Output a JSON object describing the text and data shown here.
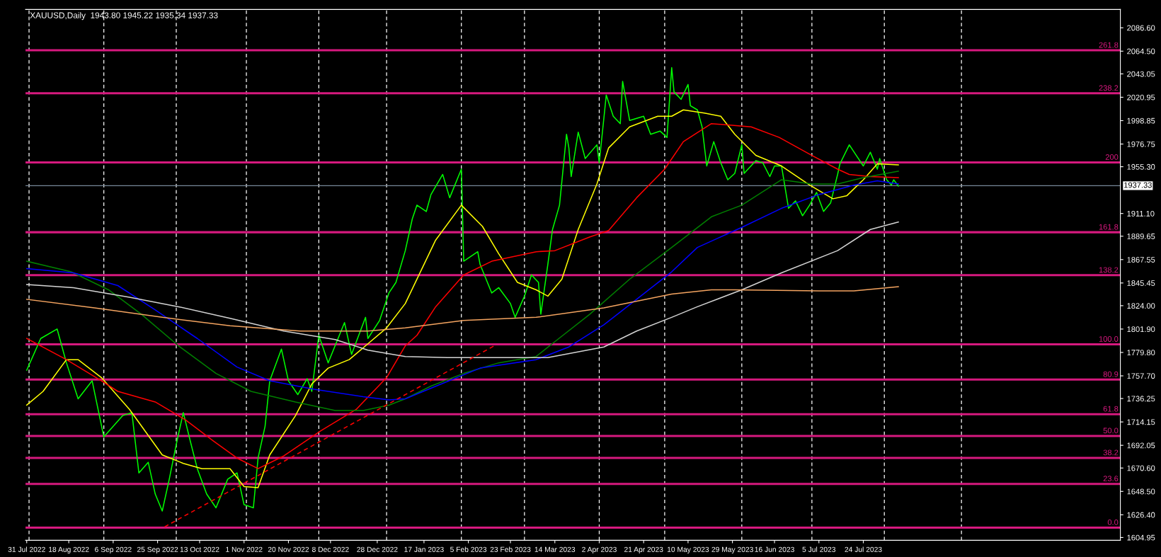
{
  "chart_data": {
    "type": "line",
    "title": "XAUUSD,Daily  1943.80 1945.22 1935.34 1937.33",
    "xlim": [
      "2022-07-30T12:00",
      "2023-11-11"
    ],
    "ylim": [
      1602.3,
      2103.9
    ],
    "xticks": [
      {
        "value": "2022-07-31",
        "label": "31 Jul 2022"
      },
      {
        "value": "2022-08-18",
        "label": "18 Aug 2022"
      },
      {
        "value": "2022-09-06",
        "label": "6 Sep 2022"
      },
      {
        "value": "2022-09-25",
        "label": "25 Sep 2022"
      },
      {
        "value": "2022-10-13",
        "label": "13 Oct 2022"
      },
      {
        "value": "2022-11-01",
        "label": "1 Nov 2022"
      },
      {
        "value": "2022-11-20",
        "label": "20 Nov 2022"
      },
      {
        "value": "2022-12-08",
        "label": "8 Dec 2022"
      },
      {
        "value": "2022-12-28",
        "label": "28 Dec 2022"
      },
      {
        "value": "2023-01-17",
        "label": "17 Jan 2023"
      },
      {
        "value": "2023-02-05",
        "label": "5 Feb 2023"
      },
      {
        "value": "2023-02-23",
        "label": "23 Feb 2023"
      },
      {
        "value": "2023-03-14",
        "label": "14 Mar 2023"
      },
      {
        "value": "2023-04-02",
        "label": "2 Apr 2023"
      },
      {
        "value": "2023-04-21",
        "label": "21 Apr 2023"
      },
      {
        "value": "2023-05-10",
        "label": "10 May 2023"
      },
      {
        "value": "2023-05-29",
        "label": "29 May 2023"
      },
      {
        "value": "2023-06-16",
        "label": "16 Jun 2023"
      },
      {
        "value": "2023-07-05",
        "label": "5 Jul 2023"
      },
      {
        "value": "2023-07-24",
        "label": "24 Jul 2023"
      }
    ],
    "yticks": [
      {
        "value": 1604.95,
        "label": "1604.95"
      },
      {
        "value": 1626.4,
        "label": "1626.40"
      },
      {
        "value": 1648.5,
        "label": "1648.50"
      },
      {
        "value": 1670.6,
        "label": "1670.60"
      },
      {
        "value": 1692.05,
        "label": "1692.05"
      },
      {
        "value": 1714.15,
        "label": "1714.15"
      },
      {
        "value": 1736.25,
        "label": "1736.25"
      },
      {
        "value": 1757.7,
        "label": "1757.70"
      },
      {
        "value": 1779.8,
        "label": "1779.80"
      },
      {
        "value": 1801.9,
        "label": "1801.90"
      },
      {
        "value": 1824.0,
        "label": "1824.00"
      },
      {
        "value": 1845.45,
        "label": "1845.45"
      },
      {
        "value": 1867.55,
        "label": "1867.55"
      },
      {
        "value": 1889.65,
        "label": "1889.65"
      },
      {
        "value": 1911.1,
        "label": "1911.10"
      },
      {
        "value": 1955.3,
        "label": "1955.30"
      },
      {
        "value": 1976.75,
        "label": "1976.75"
      },
      {
        "value": 1998.85,
        "label": "1998.85"
      },
      {
        "value": 2020.95,
        "label": "2020.95"
      },
      {
        "value": 2043.05,
        "label": "2043.05"
      },
      {
        "value": 2064.5,
        "label": "2064.50"
      },
      {
        "value": 2086.6,
        "label": "2086.60"
      }
    ],
    "series": [
      {
        "color": "#00ff00",
        "x": [
          "2022-07-31",
          "2022-08-06",
          "2022-08-13",
          "2022-08-17",
          "2022-08-22",
          "2022-08-28",
          "2022-09-02",
          "2022-09-10",
          "2022-09-14",
          "2022-09-17",
          "2022-09-21",
          "2022-09-24",
          "2022-09-27",
          "2022-09-30",
          "2022-10-03",
          "2022-10-06",
          "2022-10-09",
          "2022-10-12",
          "2022-10-16",
          "2022-10-20",
          "2022-10-25",
          "2022-10-29",
          "2022-11-01",
          "2022-11-05",
          "2022-11-07",
          "2022-11-10",
          "2022-11-12",
          "2022-11-17",
          "2022-11-20",
          "2022-11-24",
          "2022-11-28",
          "2022-11-30",
          "2022-12-03",
          "2022-12-07",
          "2022-12-14",
          "2022-12-17",
          "2022-12-23",
          "2022-12-24",
          "2022-12-29",
          "2023-01-02",
          "2023-01-05",
          "2023-01-09",
          "2023-01-12",
          "2023-01-14",
          "2023-01-18",
          "2023-01-20",
          "2023-01-25",
          "2023-01-28",
          "2023-02-02",
          "2023-02-03",
          "2023-02-09",
          "2023-02-10",
          "2023-02-15",
          "2023-02-18",
          "2023-02-23",
          "2023-02-25",
          "2023-03-01",
          "2023-03-04",
          "2023-03-07",
          "2023-03-08",
          "2023-03-11",
          "2023-03-13",
          "2023-03-16",
          "2023-03-19",
          "2023-03-20",
          "2023-03-21",
          "2023-03-24",
          "2023-03-27",
          "2023-04-01",
          "2023-04-02",
          "2023-04-05",
          "2023-04-08",
          "2023-04-11",
          "2023-04-12",
          "2023-04-15",
          "2023-04-21",
          "2023-04-24",
          "2023-04-28",
          "2023-05-01",
          "2023-05-03",
          "2023-05-04",
          "2023-05-07",
          "2023-05-10",
          "2023-05-11",
          "2023-05-14",
          "2023-05-16",
          "2023-05-18",
          "2023-05-21",
          "2023-05-24",
          "2023-05-27",
          "2023-05-30",
          "2023-06-02",
          "2023-06-03",
          "2023-06-08",
          "2023-06-11",
          "2023-06-14",
          "2023-06-16",
          "2023-06-19",
          "2023-06-22",
          "2023-06-25",
          "2023-06-28",
          "2023-07-01",
          "2023-07-04",
          "2023-07-07",
          "2023-07-10",
          "2023-07-13",
          "2023-07-14",
          "2023-07-18",
          "2023-07-21",
          "2023-07-24",
          "2023-07-27",
          "2023-07-30",
          "2023-07-31",
          "2023-08-03",
          "2023-08-05",
          "2023-08-06",
          "2023-08-08"
        ],
        "values": [
          1763,
          1793,
          1802,
          1770,
          1736,
          1753,
          1700,
          1720,
          1723,
          1666,
          1676,
          1646,
          1630,
          1660,
          1693,
          1723,
          1696,
          1670,
          1646,
          1633,
          1660,
          1666,
          1636,
          1633,
          1680,
          1710,
          1753,
          1783,
          1753,
          1740,
          1755,
          1743,
          1796,
          1770,
          1808,
          1778,
          1813,
          1793,
          1810,
          1836,
          1846,
          1876,
          1906,
          1919,
          1913,
          1929,
          1948,
          1926,
          1953,
          1866,
          1875,
          1863,
          1836,
          1841,
          1826,
          1813,
          1833,
          1853,
          1846,
          1816,
          1863,
          1896,
          1919,
          1986,
          1973,
          1946,
          1988,
          1963,
          1976,
          1959,
          2023,
          2003,
          1996,
          2036,
          1999,
          2003,
          1986,
          1989,
          1983,
          2049,
          2026,
          2019,
          2033,
          2013,
          2009,
          1993,
          1956,
          1979,
          1959,
          1943,
          1949,
          1976,
          1949,
          1961,
          1959,
          1946,
          1956,
          1956,
          1916,
          1923,
          1909,
          1919,
          1931,
          1913,
          1921,
          1948,
          1958,
          1976,
          1966,
          1956,
          1969,
          1953,
          1963,
          1943,
          1938,
          1943,
          1937
        ]
      },
      {
        "color": "#ffff00",
        "x": [
          "2022-07-31",
          "2022-08-07",
          "2022-08-17",
          "2022-08-22",
          "2022-09-01",
          "2022-09-13",
          "2022-09-27",
          "2022-10-06",
          "2022-10-14",
          "2022-10-26",
          "2022-11-01",
          "2022-11-07",
          "2022-11-12",
          "2022-11-23",
          "2022-11-30",
          "2022-12-07",
          "2022-12-16",
          "2022-12-24",
          "2023-01-01",
          "2023-01-09",
          "2023-01-22",
          "2023-02-02",
          "2023-02-11",
          "2023-02-18",
          "2023-02-26",
          "2023-03-06",
          "2023-03-11",
          "2023-03-17",
          "2023-03-24",
          "2023-04-01",
          "2023-04-06",
          "2023-04-15",
          "2023-04-27",
          "2023-05-03",
          "2023-05-08",
          "2023-05-17",
          "2023-05-24",
          "2023-05-30",
          "2023-06-08",
          "2023-06-19",
          "2023-07-01",
          "2023-07-11",
          "2023-07-17",
          "2023-07-24",
          "2023-07-30",
          "2023-08-08"
        ],
        "values": [
          1730,
          1743,
          1773,
          1773,
          1756,
          1726,
          1683,
          1675,
          1670,
          1670,
          1653,
          1652,
          1683,
          1720,
          1750,
          1765,
          1773,
          1788,
          1803,
          1826,
          1886,
          1919,
          1899,
          1873,
          1846,
          1839,
          1833,
          1849,
          1896,
          1939,
          1973,
          1993,
          2003,
          2003,
          2009,
          2006,
          2003,
          1986,
          1966,
          1956,
          1938,
          1925,
          1928,
          1943,
          1958,
          1957
        ]
      },
      {
        "color": "#ff0000",
        "x": [
          "2022-07-31",
          "2022-08-17",
          "2022-09-01",
          "2022-09-08",
          "2022-09-24",
          "2022-10-07",
          "2022-10-19",
          "2022-10-29",
          "2022-11-07",
          "2022-11-18",
          "2022-12-04",
          "2022-12-19",
          "2023-01-01",
          "2023-01-09",
          "2023-01-14",
          "2023-01-22",
          "2023-02-03",
          "2023-02-15",
          "2023-03-06",
          "2023-03-14",
          "2023-03-29",
          "2023-04-06",
          "2023-04-18",
          "2023-04-30",
          "2023-05-08",
          "2023-05-20",
          "2023-06-06",
          "2023-06-18",
          "2023-07-02",
          "2023-07-13",
          "2023-07-18",
          "2023-07-27",
          "2023-08-08"
        ],
        "values": [
          1793,
          1773,
          1753,
          1743,
          1733,
          1716,
          1696,
          1680,
          1670,
          1682,
          1706,
          1726,
          1756,
          1786,
          1796,
          1823,
          1853,
          1866,
          1875,
          1876,
          1889,
          1895,
          1926,
          1953,
          1979,
          1996,
          1993,
          1983,
          1966,
          1953,
          1948,
          1946,
          1945
        ]
      },
      {
        "color": "#008000",
        "x": [
          "2022-07-31",
          "2022-08-19",
          "2022-09-04",
          "2022-09-18",
          "2022-10-04",
          "2022-10-20",
          "2022-11-04",
          "2022-11-23",
          "2022-12-10",
          "2022-12-22",
          "2023-01-02",
          "2023-01-09",
          "2023-01-20",
          "2023-02-03",
          "2023-02-18",
          "2023-03-06",
          "2023-03-14",
          "2023-03-29",
          "2023-04-15",
          "2023-05-03",
          "2023-05-20",
          "2023-06-02",
          "2023-06-19",
          "2023-07-02",
          "2023-07-13",
          "2023-07-24",
          "2023-08-08"
        ],
        "values": [
          1866,
          1856,
          1839,
          1816,
          1786,
          1760,
          1743,
          1733,
          1725,
          1725,
          1730,
          1736,
          1748,
          1760,
          1770,
          1776,
          1790,
          1816,
          1849,
          1879,
          1908,
          1919,
          1943,
          1939,
          1939,
          1945,
          1951
        ]
      },
      {
        "color": "#0000ff",
        "x": [
          "2022-07-31",
          "2022-08-20",
          "2022-09-08",
          "2022-09-24",
          "2022-10-12",
          "2022-10-29",
          "2022-11-12",
          "2022-12-01",
          "2022-12-22",
          "2023-01-02",
          "2023-01-09",
          "2023-01-20",
          "2023-02-10",
          "2023-03-06",
          "2023-03-20",
          "2023-04-04",
          "2023-04-18",
          "2023-05-03",
          "2023-05-14",
          "2023-06-02",
          "2023-06-19",
          "2023-07-05",
          "2023-07-20",
          "2023-07-30",
          "2023-08-08"
        ],
        "values": [
          1859,
          1855,
          1843,
          1820,
          1793,
          1766,
          1753,
          1745,
          1738,
          1735,
          1736,
          1746,
          1765,
          1773,
          1785,
          1806,
          1830,
          1856,
          1879,
          1898,
          1916,
          1929,
          1938,
          1942,
          1939
        ]
      },
      {
        "color": "#d3d3d3",
        "x": [
          "2022-07-31",
          "2022-08-20",
          "2022-09-13",
          "2022-10-04",
          "2022-10-26",
          "2022-11-18",
          "2022-12-10",
          "2022-12-24",
          "2023-01-09",
          "2023-01-27",
          "2023-02-18",
          "2023-03-11",
          "2023-03-23",
          "2023-04-04",
          "2023-04-18",
          "2023-05-03",
          "2023-05-14",
          "2023-06-02",
          "2023-06-19",
          "2023-07-13",
          "2023-07-27",
          "2023-08-08"
        ],
        "values": [
          1844,
          1841,
          1832,
          1823,
          1812,
          1800,
          1792,
          1782,
          1776,
          1775,
          1775,
          1775,
          1780,
          1785,
          1800,
          1813,
          1823,
          1839,
          1855,
          1876,
          1896,
          1903
        ]
      },
      {
        "color": "#f4a460",
        "x": [
          "2022-07-31",
          "2022-08-29",
          "2022-09-27",
          "2022-10-26",
          "2022-11-25",
          "2022-12-24",
          "2023-01-09",
          "2023-02-03",
          "2023-03-06",
          "2023-04-04",
          "2023-05-03",
          "2023-05-20",
          "2023-05-30",
          "2023-07-05",
          "2023-07-20",
          "2023-08-08"
        ],
        "values": [
          1830,
          1822,
          1813,
          1805,
          1800,
          1800,
          1803,
          1810,
          1813,
          1822,
          1835,
          1839,
          1839,
          1838,
          1838,
          1842
        ]
      },
      {
        "color": "#ff0000",
        "line_style": "dashed",
        "x": [
          "2022-09-28",
          "2023-02-16"
        ],
        "values": [
          1615,
          1786
        ]
      }
    ],
    "ref_lines": [
      {
        "axis": "y",
        "value": 2065.3,
        "color": "#d6197e"
      },
      {
        "axis": "y",
        "value": 2024.7,
        "color": "#d6197e"
      },
      {
        "axis": "y",
        "value": 1959.4,
        "color": "#d6197e"
      },
      {
        "axis": "y",
        "value": 1893.4,
        "color": "#d6197e"
      },
      {
        "axis": "y",
        "value": 1852.8,
        "color": "#d6197e"
      },
      {
        "axis": "y",
        "value": 1787.5,
        "color": "#d6197e"
      },
      {
        "axis": "y",
        "value": 1754.2,
        "color": "#d6197e"
      },
      {
        "axis": "y",
        "value": 1721.5,
        "color": "#d6197e"
      },
      {
        "axis": "y",
        "value": 1700.9,
        "color": "#d6197e"
      },
      {
        "axis": "y",
        "value": 1680.2,
        "color": "#d6197e"
      },
      {
        "axis": "y",
        "value": 1655.6,
        "color": "#d6197e"
      },
      {
        "axis": "y",
        "value": 1614.3,
        "color": "#d6197e"
      },
      {
        "axis": "y",
        "value": 1937.33,
        "label": "1937.33",
        "color": "#778899"
      },
      {
        "axis": "x",
        "value": "2022-08-01",
        "color": "#ffffff",
        "line_style": "dashed"
      },
      {
        "axis": "x",
        "value": "2022-09-02",
        "color": "#ffffff",
        "line_style": "dashed"
      },
      {
        "axis": "x",
        "value": "2022-10-03",
        "color": "#ffffff",
        "line_style": "dashed"
      },
      {
        "axis": "x",
        "value": "2022-11-02",
        "color": "#ffffff",
        "line_style": "dashed"
      },
      {
        "axis": "x",
        "value": "2022-12-03",
        "color": "#ffffff",
        "line_style": "dashed"
      },
      {
        "axis": "x",
        "value": "2023-01-01",
        "color": "#ffffff",
        "line_style": "dashed"
      },
      {
        "axis": "x",
        "value": "2023-02-02",
        "color": "#ffffff",
        "line_style": "dashed"
      },
      {
        "axis": "x",
        "value": "2023-03-01",
        "color": "#ffffff",
        "line_style": "dashed"
      },
      {
        "axis": "x",
        "value": "2023-04-02",
        "color": "#ffffff",
        "line_style": "dashed"
      },
      {
        "axis": "x",
        "value": "2023-04-30",
        "color": "#ffffff",
        "line_style": "dashed"
      },
      {
        "axis": "x",
        "value": "2023-06-02",
        "color": "#ffffff",
        "line_style": "dashed"
      },
      {
        "axis": "x",
        "value": "2023-07-02",
        "color": "#ffffff",
        "line_style": "dashed"
      },
      {
        "axis": "x",
        "value": "2023-08-02",
        "color": "#ffffff",
        "line_style": "dashed"
      },
      {
        "axis": "x",
        "value": "2023-09-04",
        "color": "#ffffff",
        "line_style": "dashed"
      }
    ],
    "annotations": [
      {
        "text": "261.8",
        "x": "2023-11-11",
        "y": 2065.3
      },
      {
        "text": "238.2",
        "x": "2023-11-11",
        "y": 2024.7
      },
      {
        "text": "200",
        "x": "2023-11-11",
        "y": 1959.4
      },
      {
        "text": "161.8",
        "x": "2023-11-11",
        "y": 1893.4
      },
      {
        "text": "138.2",
        "x": "2023-11-11",
        "y": 1852.8
      },
      {
        "text": "100.0",
        "x": "2023-11-11",
        "y": 1787.5
      },
      {
        "text": "80.9",
        "x": "2023-11-11",
        "y": 1754.2
      },
      {
        "text": "61.8",
        "x": "2023-11-11",
        "y": 1721.5
      },
      {
        "text": "50.0",
        "x": "2023-11-11",
        "y": 1700.9
      },
      {
        "text": "38.2",
        "x": "2023-11-11",
        "y": 1680.2
      },
      {
        "text": "23.6",
        "x": "2023-11-11",
        "y": 1655.6
      },
      {
        "text": "0.0",
        "x": "2023-11-11",
        "y": 1614.3
      }
    ]
  }
}
